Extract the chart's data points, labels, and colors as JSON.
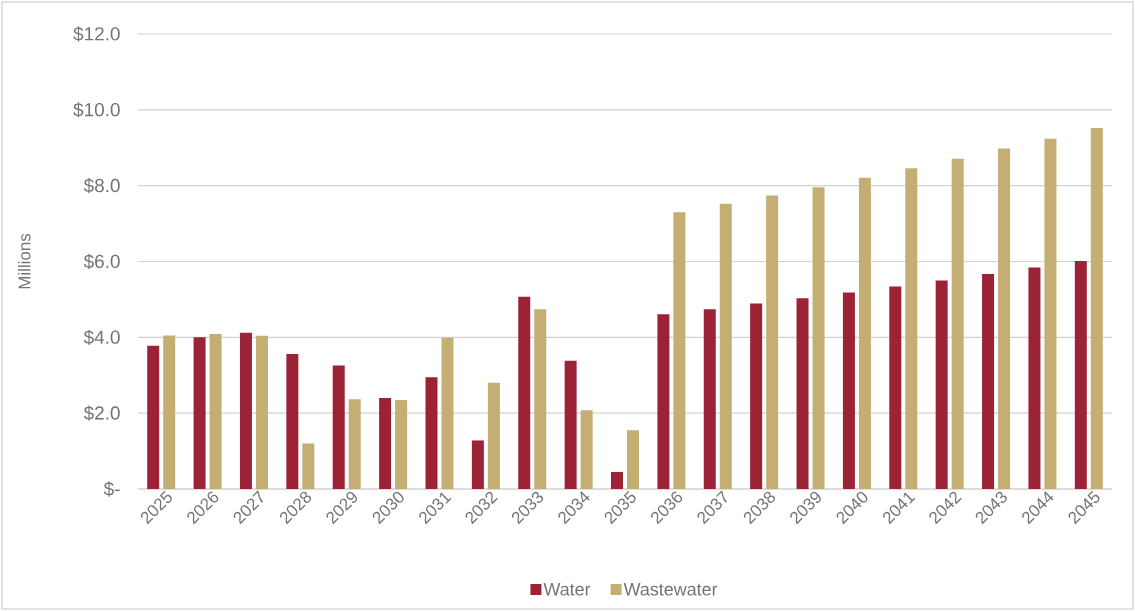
{
  "chart_data": {
    "type": "bar",
    "ylabel": "Millions",
    "categories": [
      "2025",
      "2026",
      "2027",
      "2028",
      "2029",
      "2030",
      "2031",
      "2032",
      "2033",
      "2034",
      "2035",
      "2036",
      "2037",
      "2038",
      "2039",
      "2040",
      "2041",
      "2042",
      "2043",
      "2044",
      "2045"
    ],
    "series": [
      {
        "name": "Water",
        "color": "#9b2335",
        "values": [
          3.78,
          4.0,
          4.12,
          3.56,
          3.26,
          2.4,
          2.95,
          1.28,
          5.07,
          3.38,
          0.45,
          4.61,
          4.74,
          4.89,
          5.03,
          5.18,
          5.34,
          5.5,
          5.67,
          5.84,
          6.01
        ]
      },
      {
        "name": "Wastewater",
        "color": "#c4ae74",
        "values": [
          4.05,
          4.09,
          4.04,
          1.2,
          2.37,
          2.35,
          3.99,
          2.8,
          4.74,
          2.08,
          1.55,
          7.3,
          7.52,
          7.74,
          7.96,
          8.21,
          8.46,
          8.71,
          8.98,
          9.24,
          9.52
        ]
      }
    ],
    "ylim": [
      0,
      12
    ],
    "yticks": [
      {
        "value": 0,
        "label": "$-"
      },
      {
        "value": 2,
        "label": "$2.0"
      },
      {
        "value": 4,
        "label": "$4.0"
      },
      {
        "value": 6,
        "label": "$6.0"
      },
      {
        "value": 8,
        "label": "$8.0"
      },
      {
        "value": 10,
        "label": "$10.0"
      },
      {
        "value": 12,
        "label": "$12.0"
      }
    ],
    "grid": "y",
    "legend": "bottom"
  }
}
